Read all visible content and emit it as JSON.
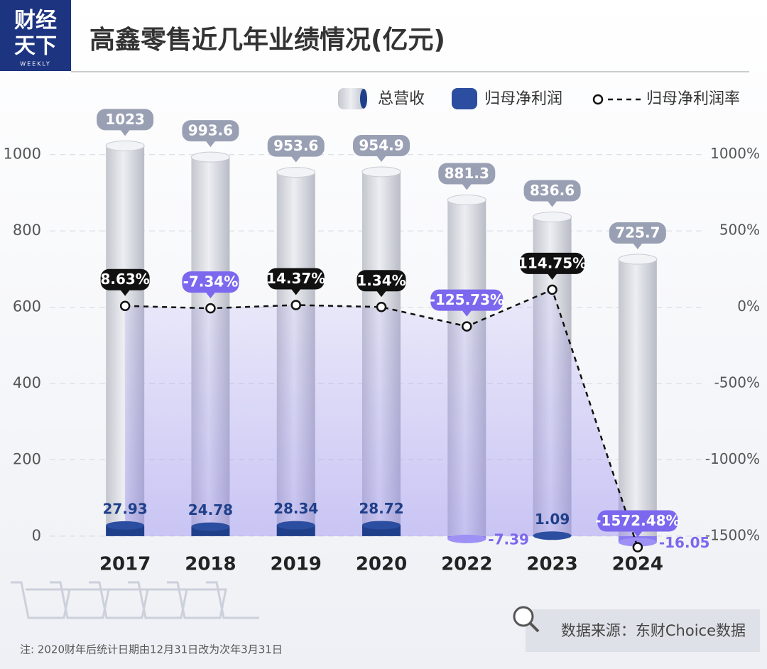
{
  "logo": {
    "line1": "财经",
    "line2": "天下",
    "sub": "WEEKLY"
  },
  "chart_data": {
    "type": "bar-line",
    "title": "高鑫零售近几年业绩情况(亿元)",
    "categories": [
      "2017",
      "2018",
      "2019",
      "2020",
      "2022",
      "2023",
      "2024"
    ],
    "series": [
      {
        "name": "总营收",
        "color": "#c9cbd3",
        "values": [
          1023,
          993.6,
          953.6,
          954.9,
          881.3,
          836.6,
          725.7
        ]
      },
      {
        "name": "归母净利润",
        "color": "#1f3f8a",
        "negative_color": "#8a7cf0",
        "values": [
          27.93,
          24.78,
          28.34,
          28.72,
          -7.39,
          1.09,
          -16.05
        ]
      },
      {
        "name": "归母净利润率",
        "color": "#111111",
        "negative_color": "#7b68ee",
        "axis": "y2",
        "values": [
          8.63,
          -7.34,
          14.37,
          1.34,
          -125.73,
          114.75,
          -1572.48
        ],
        "value_labels": [
          "8.63%",
          "-7.34%",
          "14.37%",
          "1.34%",
          "-125.73%",
          "114.75%",
          "-1572.48%"
        ]
      }
    ],
    "ylim": [
      -30,
      1100
    ],
    "yticks": [
      0,
      200,
      400,
      600,
      800,
      1000
    ],
    "y2lim": [
      -1575,
      1250
    ],
    "y2ticks": [
      {
        "value": 1000,
        "label": "1000%"
      },
      {
        "value": 500,
        "label": "500%"
      },
      {
        "value": 0,
        "label": "0%"
      },
      {
        "value": -500,
        "label": "-500%"
      },
      {
        "value": -1000,
        "label": "-1000%"
      },
      {
        "value": -1500,
        "label": "-1500%"
      }
    ],
    "grid": true,
    "source": "数据来源：东财Choice数据",
    "note": "注: 2020财年后统计日期由12月31日改为次年3月31日"
  }
}
